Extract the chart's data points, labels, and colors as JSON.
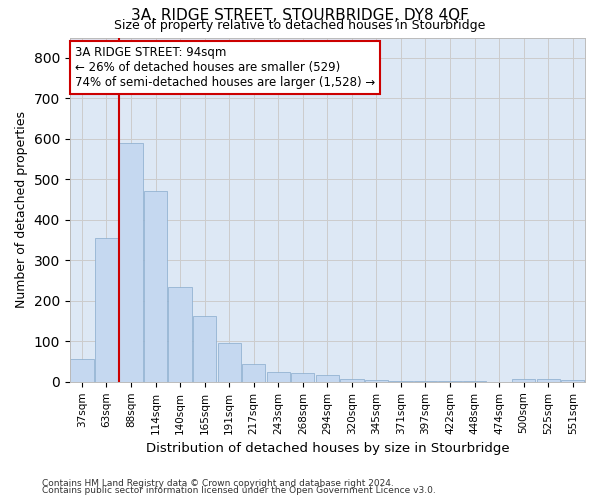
{
  "title": "3A, RIDGE STREET, STOURBRIDGE, DY8 4QF",
  "subtitle": "Size of property relative to detached houses in Stourbridge",
  "xlabel": "Distribution of detached houses by size in Stourbridge",
  "ylabel": "Number of detached properties",
  "categories": [
    "37sqm",
    "63sqm",
    "88sqm",
    "114sqm",
    "140sqm",
    "165sqm",
    "191sqm",
    "217sqm",
    "243sqm",
    "268sqm",
    "294sqm",
    "320sqm",
    "345sqm",
    "371sqm",
    "397sqm",
    "422sqm",
    "448sqm",
    "474sqm",
    "500sqm",
    "525sqm",
    "551sqm"
  ],
  "values": [
    57,
    356,
    590,
    470,
    235,
    162,
    96,
    45,
    25,
    22,
    18,
    8,
    5,
    3,
    1,
    1,
    1,
    0,
    8,
    8,
    5
  ],
  "bar_color": "#c5d8f0",
  "bar_edge_color": "#88aacc",
  "vline_color": "#cc0000",
  "annotation_text": "3A RIDGE STREET: 94sqm\n← 26% of detached houses are smaller (529)\n74% of semi-detached houses are larger (1,528) →",
  "annotation_box_color": "#ffffff",
  "annotation_box_edge_color": "#cc0000",
  "ylim": [
    0,
    850
  ],
  "yticks": [
    0,
    100,
    200,
    300,
    400,
    500,
    600,
    700,
    800
  ],
  "grid_color": "#cccccc",
  "bg_color": "#dde8f5",
  "fig_bg_color": "#ffffff",
  "footer1": "Contains HM Land Registry data © Crown copyright and database right 2024.",
  "footer2": "Contains public sector information licensed under the Open Government Licence v3.0."
}
